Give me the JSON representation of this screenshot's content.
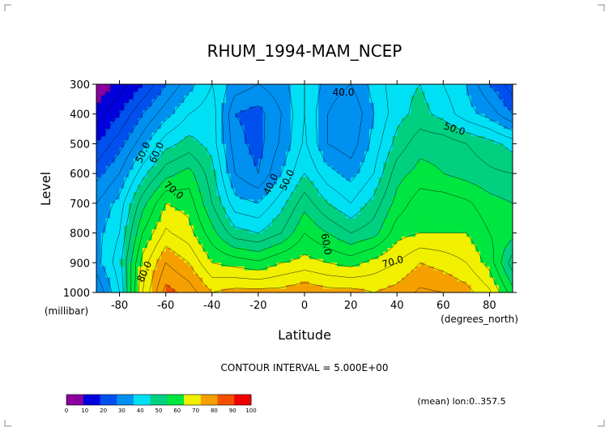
{
  "chart_data": {
    "type": "heatmap",
    "title": "RHUM_1994-MAM_NCEP",
    "xlabel": "Latitude",
    "ylabel": "Level",
    "x_units": "(degrees_north)",
    "y_units": "(millibar)",
    "xlim": [
      -90,
      90
    ],
    "ylim": [
      1000,
      300
    ],
    "x_ticks": [
      -80,
      -60,
      -40,
      -20,
      0,
      20,
      40,
      60,
      80
    ],
    "y_ticks": [
      300,
      400,
      500,
      600,
      700,
      800,
      900,
      1000
    ],
    "contour_interval_text": "CONTOUR INTERVAL = 5.000E+00",
    "footnote": "(mean) lon:0..357.5",
    "lat_grid": [
      -90,
      -80,
      -70,
      -60,
      -50,
      -40,
      -30,
      -20,
      -10,
      0,
      10,
      20,
      30,
      40,
      50,
      60,
      70,
      80,
      90
    ],
    "levels": [
      300,
      400,
      500,
      600,
      700,
      800,
      900,
      1000
    ],
    "values": [
      [
        5,
        12,
        20,
        30,
        38,
        45,
        38,
        35,
        38,
        45,
        38,
        35,
        42,
        48,
        50,
        45,
        40,
        30,
        22
      ],
      [
        12,
        20,
        30,
        38,
        45,
        48,
        30,
        28,
        35,
        45,
        35,
        30,
        40,
        48,
        52,
        48,
        42,
        38,
        30
      ],
      [
        20,
        28,
        38,
        48,
        52,
        48,
        32,
        28,
        36,
        46,
        35,
        32,
        42,
        52,
        58,
        58,
        55,
        52,
        48
      ],
      [
        28,
        35,
        48,
        58,
        62,
        52,
        35,
        30,
        40,
        50,
        42,
        38,
        45,
        58,
        62,
        60,
        58,
        56,
        55
      ],
      [
        35,
        42,
        58,
        70,
        68,
        55,
        42,
        40,
        48,
        58,
        50,
        45,
        52,
        62,
        68,
        68,
        66,
        62,
        60
      ],
      [
        38,
        45,
        65,
        76,
        72,
        62,
        52,
        50,
        55,
        65,
        60,
        55,
        58,
        68,
        70,
        70,
        70,
        65,
        62
      ],
      [
        38,
        48,
        72,
        85,
        80,
        70,
        68,
        66,
        70,
        72,
        70,
        68,
        72,
        75,
        80,
        78,
        75,
        68,
        52
      ],
      [
        30,
        45,
        75,
        92,
        88,
        80,
        82,
        82,
        82,
        84,
        82,
        82,
        80,
        82,
        86,
        85,
        82,
        76,
        62
      ]
    ],
    "contour_labels": [
      "40.0",
      "50.0",
      "50.0",
      "60.0",
      "70.0",
      "40.0",
      "50.0",
      "60.0",
      "70.0",
      "80.0"
    ],
    "colorbar": {
      "ticks": [
        "0",
        "10",
        "20",
        "30",
        "40",
        "50",
        "60",
        "70",
        "80",
        "90",
        "100"
      ],
      "colors": [
        "#8c00a0",
        "#0000dc",
        "#0050f0",
        "#0090f0",
        "#00e0f5",
        "#00d080",
        "#00e640",
        "#f0f000",
        "#f5a000",
        "#f55000",
        "#f00000"
      ]
    }
  }
}
